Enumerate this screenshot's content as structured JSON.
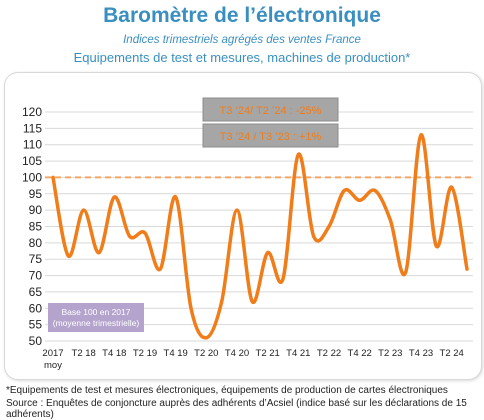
{
  "header": {
    "title": "Baromètre de l’électronique",
    "subtitle": "Indices trimestriels agrégés des ventes France",
    "subtitle2": "Equipements de test et mesures, machines de production*"
  },
  "annotations": {
    "box1": "T3 ’24/ T2 ’24 : -25%",
    "box2": "T3 ’24 / T3 ’23 : +1%",
    "base_line1": "Base 100 en 2017",
    "base_line2": "(moyenne trimestrielle)",
    "first_tick_sub": "moy"
  },
  "footnotes": {
    "line1": "*Equipements de test et mesures électroniques, équipements de production de cartes électroniques",
    "line2": "Source : Enquêtes de conjoncture auprès des adhérents d’Acsiel (indice basé sur les déclarations de 15 adhérents)"
  },
  "colors": {
    "title": "#3a8fc1",
    "series": "#f07d1a",
    "reference": "#f2a766",
    "grid": "#d9d9d9",
    "base_box": "#b4a3cc",
    "annotation_box": "#a6a6a6",
    "annotation_text": "#f07d1a"
  },
  "chart_data": {
    "type": "line",
    "title": "Baromètre de l’électronique",
    "x_tick_labels": [
      "2017",
      "T2 18",
      "T4 18",
      "T2 19",
      "T4 19",
      "T2 20",
      "T4 20",
      "T2 21",
      "T4 21",
      "T2 22",
      "T4 22",
      "T2 23",
      "T4 23",
      "T2 24"
    ],
    "ylim": [
      50,
      120
    ],
    "yticks": [
      50,
      55,
      60,
      65,
      70,
      75,
      80,
      85,
      90,
      95,
      100,
      105,
      110,
      115,
      120
    ],
    "grid": true,
    "reference_line": 100,
    "series": [
      {
        "values": [
          100,
          76,
          90,
          77,
          94,
          82,
          83,
          72,
          94,
          60,
          51,
          62,
          90,
          62,
          77,
          69,
          107,
          82,
          85,
          96,
          93,
          96,
          87,
          71,
          113,
          79,
          97,
          72
        ]
      }
    ]
  }
}
